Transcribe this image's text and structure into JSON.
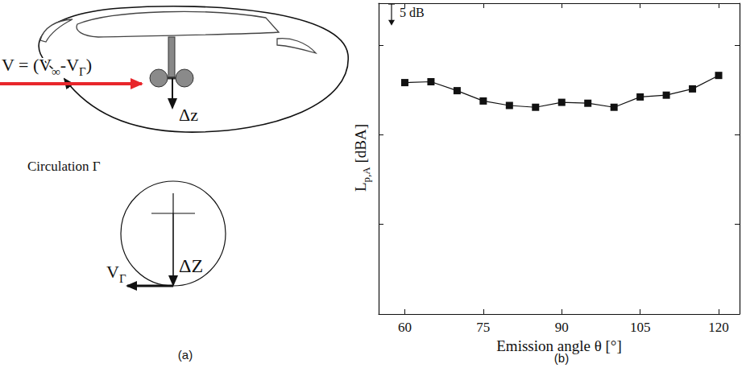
{
  "panels": {
    "a": "(a)",
    "b": "(b)"
  },
  "diagram": {
    "velocity_label": [
      {
        "t": "V = (V"
      },
      {
        "t": "∞",
        "sub": true
      },
      {
        "t": "-V"
      },
      {
        "t": "Γ",
        "sub": true
      },
      {
        "t": ")"
      }
    ],
    "circulation_label": "Circulation Γ",
    "offset_label_upper": "Δz",
    "offset_label_lower": "ΔZ",
    "vortex_velocity_label": [
      {
        "t": "V"
      },
      {
        "t": "Γ",
        "sub": true
      }
    ]
  },
  "chart_data": {
    "type": "line",
    "x_label": "Emission angle θ [°]",
    "y_label": [
      {
        "t": "L"
      },
      {
        "t": "p,A",
        "sub": true
      },
      {
        "t": " [dBA]"
      }
    ],
    "x": [
      60,
      65,
      70,
      75,
      80,
      85,
      90,
      95,
      100,
      105,
      110,
      115,
      120
    ],
    "values": [
      51.6,
      51.8,
      49.8,
      47.5,
      46.5,
      46.1,
      47.2,
      47.0,
      46.1,
      48.4,
      48.8,
      50.2,
      53.2
    ],
    "xlim": [
      55,
      124
    ],
    "xticks": [
      60,
      75,
      90,
      105,
      120
    ],
    "ylim": [
      0,
      69.3
    ],
    "yticks": [
      20,
      40,
      60
    ],
    "tick_labels": "x",
    "grid": false,
    "color": "#111111",
    "marker": "square",
    "line_style": "solid",
    "annotations": [
      {
        "text": "5 dB",
        "span": 5
      }
    ]
  }
}
